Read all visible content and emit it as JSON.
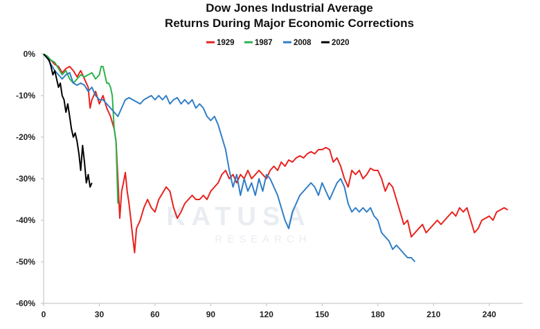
{
  "chart_data": {
    "type": "line",
    "title": "Dow Jones Industrial Average",
    "subtitle": "Returns During Major Economic Corrections",
    "xlabel": "",
    "ylabel": "",
    "xlim": [
      0,
      258
    ],
    "ylim": [
      -60,
      0
    ],
    "x_ticks": [
      0,
      30,
      60,
      90,
      120,
      150,
      180,
      210,
      240
    ],
    "y_ticks": [
      0,
      -10,
      -20,
      -30,
      -40,
      -50,
      -60
    ],
    "y_tick_labels": [
      "0%",
      "-10%",
      "-20%",
      "-30%",
      "-40%",
      "-50%",
      "-60%"
    ],
    "grid": false,
    "legend_position": "top-center",
    "watermark": "KATUSA RESEARCH",
    "series": [
      {
        "name": "1929",
        "color": "#e8201c",
        "points": [
          [
            0,
            0
          ],
          [
            2,
            -1
          ],
          [
            4,
            -1.5
          ],
          [
            6,
            -2.5
          ],
          [
            8,
            -3
          ],
          [
            10,
            -4.5
          ],
          [
            12,
            -3.5
          ],
          [
            14,
            -3
          ],
          [
            16,
            -4
          ],
          [
            18,
            -5.5
          ],
          [
            20,
            -4
          ],
          [
            22,
            -6
          ],
          [
            24,
            -8
          ],
          [
            25,
            -13
          ],
          [
            26,
            -11
          ],
          [
            28,
            -9
          ],
          [
            30,
            -12
          ],
          [
            32,
            -10
          ],
          [
            34,
            -13
          ],
          [
            36,
            -15
          ],
          [
            38,
            -18
          ],
          [
            39,
            -21
          ],
          [
            40,
            -30
          ],
          [
            41,
            -39.5
          ],
          [
            42,
            -33
          ],
          [
            43,
            -31
          ],
          [
            44,
            -28.5
          ],
          [
            45,
            -33
          ],
          [
            46,
            -36
          ],
          [
            47,
            -40
          ],
          [
            48,
            -44
          ],
          [
            49,
            -47.8
          ],
          [
            50,
            -42
          ],
          [
            52,
            -40
          ],
          [
            54,
            -37
          ],
          [
            56,
            -35
          ],
          [
            58,
            -37
          ],
          [
            60,
            -38
          ],
          [
            62,
            -35
          ],
          [
            64,
            -33.5
          ],
          [
            66,
            -32
          ],
          [
            68,
            -33
          ],
          [
            70,
            -37
          ],
          [
            72,
            -39.5
          ],
          [
            74,
            -38
          ],
          [
            76,
            -36
          ],
          [
            78,
            -35
          ],
          [
            80,
            -34
          ],
          [
            82,
            -35
          ],
          [
            84,
            -35
          ],
          [
            86,
            -34
          ],
          [
            88,
            -35
          ],
          [
            90,
            -33
          ],
          [
            92,
            -32
          ],
          [
            94,
            -31
          ],
          [
            96,
            -29
          ],
          [
            98,
            -28
          ],
          [
            100,
            -30
          ],
          [
            102,
            -29
          ],
          [
            104,
            -31
          ],
          [
            106,
            -29
          ],
          [
            108,
            -30
          ],
          [
            110,
            -28
          ],
          [
            112,
            -30
          ],
          [
            114,
            -29
          ],
          [
            116,
            -28
          ],
          [
            118,
            -29
          ],
          [
            120,
            -30
          ],
          [
            122,
            -28
          ],
          [
            124,
            -27
          ],
          [
            126,
            -28
          ],
          [
            128,
            -26
          ],
          [
            130,
            -27
          ],
          [
            132,
            -25.5
          ],
          [
            134,
            -26
          ],
          [
            136,
            -25
          ],
          [
            138,
            -24.5
          ],
          [
            140,
            -25
          ],
          [
            142,
            -24
          ],
          [
            144,
            -23.5
          ],
          [
            146,
            -24
          ],
          [
            148,
            -23
          ],
          [
            150,
            -23
          ],
          [
            152,
            -22.5
          ],
          [
            154,
            -23
          ],
          [
            156,
            -26
          ],
          [
            158,
            -25
          ],
          [
            160,
            -27
          ],
          [
            162,
            -30
          ],
          [
            164,
            -32
          ],
          [
            166,
            -28
          ],
          [
            168,
            -29
          ],
          [
            170,
            -28
          ],
          [
            172,
            -30
          ],
          [
            174,
            -29
          ],
          [
            176,
            -27.5
          ],
          [
            178,
            -28
          ],
          [
            180,
            -28
          ],
          [
            182,
            -30
          ],
          [
            184,
            -33
          ],
          [
            186,
            -31
          ],
          [
            188,
            -32
          ],
          [
            190,
            -35
          ],
          [
            192,
            -38
          ],
          [
            194,
            -41
          ],
          [
            196,
            -40
          ],
          [
            198,
            -44
          ],
          [
            200,
            -43
          ],
          [
            202,
            -42
          ],
          [
            204,
            -41
          ],
          [
            206,
            -43
          ],
          [
            208,
            -42
          ],
          [
            210,
            -41
          ],
          [
            212,
            -40
          ],
          [
            214,
            -41
          ],
          [
            216,
            -40
          ],
          [
            218,
            -39
          ],
          [
            220,
            -38
          ],
          [
            222,
            -39
          ],
          [
            224,
            -37
          ],
          [
            226,
            -38
          ],
          [
            228,
            -37
          ],
          [
            230,
            -40
          ],
          [
            232,
            -43
          ],
          [
            234,
            -42
          ],
          [
            236,
            -40
          ],
          [
            238,
            -39.5
          ],
          [
            240,
            -39
          ],
          [
            242,
            -40
          ],
          [
            244,
            -38
          ],
          [
            246,
            -37.5
          ],
          [
            248,
            -37
          ],
          [
            250,
            -37.5
          ]
        ]
      },
      {
        "name": "1987",
        "color": "#2bb24c",
        "points": [
          [
            0,
            0
          ],
          [
            2,
            -0.5
          ],
          [
            4,
            -1.5
          ],
          [
            6,
            -2
          ],
          [
            8,
            -3.5
          ],
          [
            10,
            -5
          ],
          [
            12,
            -4
          ],
          [
            14,
            -6
          ],
          [
            16,
            -7
          ],
          [
            18,
            -6
          ],
          [
            20,
            -5
          ],
          [
            22,
            -5.5
          ],
          [
            24,
            -5
          ],
          [
            26,
            -4.5
          ],
          [
            28,
            -6
          ],
          [
            30,
            -5
          ],
          [
            31,
            -3
          ],
          [
            32,
            -3
          ],
          [
            33,
            -5
          ],
          [
            34,
            -7
          ],
          [
            35,
            -7
          ],
          [
            36,
            -8
          ],
          [
            37,
            -10
          ],
          [
            38,
            -18
          ],
          [
            39,
            -21
          ],
          [
            40,
            -36
          ]
        ]
      },
      {
        "name": "2008",
        "color": "#2e7dc6",
        "points": [
          [
            0,
            0
          ],
          [
            2,
            -1
          ],
          [
            4,
            -2.5
          ],
          [
            6,
            -4
          ],
          [
            8,
            -5
          ],
          [
            10,
            -6
          ],
          [
            12,
            -5
          ],
          [
            14,
            -4.5
          ],
          [
            16,
            -7
          ],
          [
            18,
            -7.5
          ],
          [
            20,
            -7
          ],
          [
            22,
            -7.5
          ],
          [
            24,
            -9
          ],
          [
            26,
            -8
          ],
          [
            28,
            -10
          ],
          [
            30,
            -11
          ],
          [
            32,
            -11
          ],
          [
            34,
            -12
          ],
          [
            36,
            -13
          ],
          [
            38,
            -14
          ],
          [
            40,
            -15
          ],
          [
            42,
            -13
          ],
          [
            44,
            -11
          ],
          [
            46,
            -10.5
          ],
          [
            48,
            -11
          ],
          [
            50,
            -11.5
          ],
          [
            52,
            -12
          ],
          [
            54,
            -11
          ],
          [
            56,
            -10.5
          ],
          [
            58,
            -10
          ],
          [
            60,
            -11
          ],
          [
            62,
            -10
          ],
          [
            64,
            -11
          ],
          [
            66,
            -10
          ],
          [
            68,
            -12
          ],
          [
            70,
            -11
          ],
          [
            72,
            -10.5
          ],
          [
            74,
            -12
          ],
          [
            76,
            -11
          ],
          [
            78,
            -12
          ],
          [
            80,
            -11
          ],
          [
            82,
            -13
          ],
          [
            84,
            -12
          ],
          [
            86,
            -13
          ],
          [
            88,
            -15
          ],
          [
            90,
            -16
          ],
          [
            92,
            -15
          ],
          [
            94,
            -17
          ],
          [
            96,
            -20
          ],
          [
            98,
            -23
          ],
          [
            100,
            -28
          ],
          [
            102,
            -32
          ],
          [
            104,
            -29
          ],
          [
            106,
            -34
          ],
          [
            108,
            -30
          ],
          [
            110,
            -33
          ],
          [
            112,
            -31
          ],
          [
            114,
            -34
          ],
          [
            116,
            -30
          ],
          [
            118,
            -33
          ],
          [
            120,
            -29
          ],
          [
            122,
            -30
          ],
          [
            124,
            -32
          ],
          [
            126,
            -34
          ],
          [
            128,
            -37
          ],
          [
            130,
            -40
          ],
          [
            132,
            -42
          ],
          [
            134,
            -38
          ],
          [
            136,
            -36
          ],
          [
            138,
            -34
          ],
          [
            140,
            -33
          ],
          [
            142,
            -32
          ],
          [
            144,
            -31
          ],
          [
            146,
            -32
          ],
          [
            148,
            -34
          ],
          [
            150,
            -31
          ],
          [
            152,
            -33
          ],
          [
            154,
            -35
          ],
          [
            156,
            -33
          ],
          [
            158,
            -31
          ],
          [
            160,
            -30
          ],
          [
            162,
            -32
          ],
          [
            164,
            -36
          ],
          [
            166,
            -38
          ],
          [
            168,
            -37
          ],
          [
            170,
            -38
          ],
          [
            172,
            -37
          ],
          [
            174,
            -38
          ],
          [
            176,
            -37
          ],
          [
            178,
            -39
          ],
          [
            180,
            -40
          ],
          [
            182,
            -43
          ],
          [
            184,
            -44
          ],
          [
            186,
            -45
          ],
          [
            188,
            -47
          ],
          [
            190,
            -46
          ],
          [
            192,
            -47
          ],
          [
            194,
            -48
          ],
          [
            196,
            -49
          ],
          [
            198,
            -49
          ],
          [
            200,
            -50
          ]
        ]
      },
      {
        "name": "2020",
        "color": "#000000",
        "points": [
          [
            0,
            0
          ],
          [
            1,
            -0.5
          ],
          [
            2,
            -1
          ],
          [
            3,
            -1.5
          ],
          [
            4,
            -3
          ],
          [
            5,
            -5
          ],
          [
            6,
            -4
          ],
          [
            7,
            -6
          ],
          [
            8,
            -8
          ],
          [
            9,
            -7
          ],
          [
            10,
            -10
          ],
          [
            11,
            -11
          ],
          [
            12,
            -14
          ],
          [
            13,
            -12
          ],
          [
            14,
            -15
          ],
          [
            15,
            -18
          ],
          [
            16,
            -20
          ],
          [
            17,
            -19
          ],
          [
            18,
            -21
          ],
          [
            19,
            -24
          ],
          [
            20,
            -28
          ],
          [
            21,
            -22
          ],
          [
            22,
            -26
          ],
          [
            23,
            -31
          ],
          [
            24,
            -29
          ],
          [
            25,
            -32
          ],
          [
            26,
            -31
          ]
        ]
      }
    ]
  }
}
